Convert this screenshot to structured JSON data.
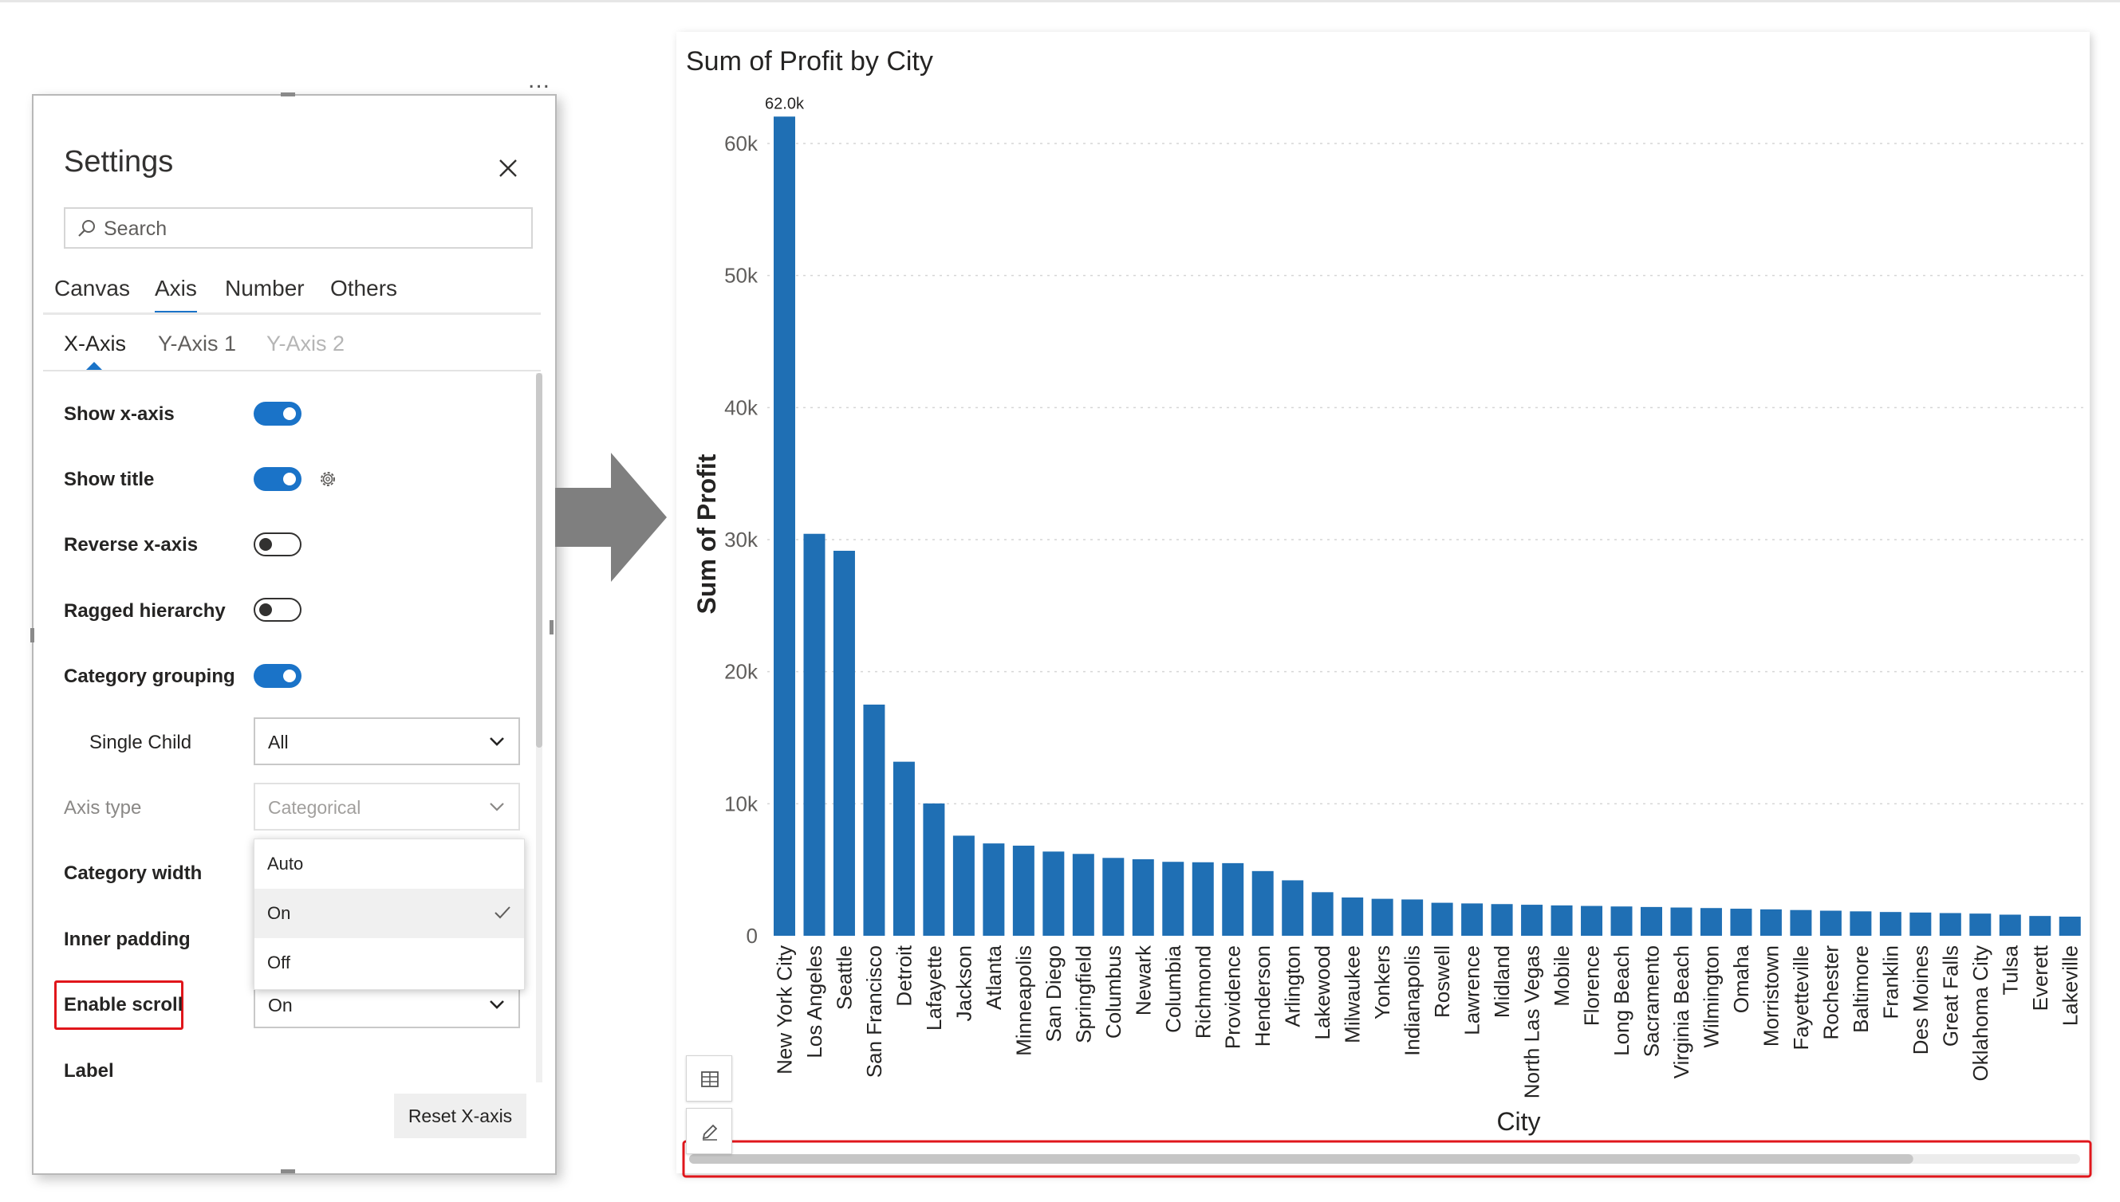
{
  "settings": {
    "title": "Settings",
    "search_placeholder": "Search",
    "tabs": [
      {
        "label": "Canvas",
        "active": false
      },
      {
        "label": "Axis",
        "active": true
      },
      {
        "label": "Number",
        "active": false
      },
      {
        "label": "Others",
        "active": false
      }
    ],
    "subtabs": [
      {
        "label": "X-Axis",
        "state": "active"
      },
      {
        "label": "Y-Axis 1",
        "state": "normal"
      },
      {
        "label": "Y-Axis 2",
        "state": "disabled"
      }
    ],
    "rows": {
      "show_x_axis": {
        "label": "Show x-axis",
        "on": true
      },
      "show_title": {
        "label": "Show title",
        "on": true
      },
      "reverse_x_axis": {
        "label": "Reverse x-axis",
        "on": false
      },
      "ragged_hierarchy": {
        "label": "Ragged hierarchy",
        "on": false
      },
      "category_grouping": {
        "label": "Category grouping",
        "on": true
      },
      "single_child": {
        "label": "Single Child",
        "value": "All"
      },
      "axis_type": {
        "label": "Axis type",
        "value": "Categorical"
      },
      "category_width": {
        "label": "Category width"
      },
      "inner_padding": {
        "label": "Inner padding"
      },
      "enable_scroll": {
        "label": "Enable scroll",
        "value": "On"
      },
      "label": {
        "label": "Label"
      }
    },
    "dropdown_options": [
      {
        "label": "Auto",
        "selected": false
      },
      {
        "label": "On",
        "selected": true
      },
      {
        "label": "Off",
        "selected": false
      }
    ],
    "reset_button": "Reset X-axis",
    "more_options": "..."
  },
  "colors": {
    "accent": "#1a73c8",
    "bar": "#1f6fb4",
    "highlight": "#e0161b",
    "arrow": "#7f7f7f"
  },
  "chart_data": {
    "type": "bar",
    "title": "Sum of Profit by City",
    "xlabel": "City",
    "ylabel": "Sum of Profit",
    "ylim": [
      0,
      62000
    ],
    "yticks": [
      0,
      10000,
      20000,
      30000,
      40000,
      50000,
      60000
    ],
    "ytick_labels": [
      "0",
      "10k",
      "20k",
      "30k",
      "40k",
      "50k",
      "60k"
    ],
    "grid": true,
    "data_labels": [
      {
        "category": "New York City",
        "text": "62.0k"
      }
    ],
    "categories": [
      "New York City",
      "Los Angeles",
      "Seattle",
      "San Francisco",
      "Detroit",
      "Lafayette",
      "Jackson",
      "Atlanta",
      "Minneapolis",
      "San Diego",
      "Springfield",
      "Columbus",
      "Newark",
      "Columbia",
      "Richmond",
      "Providence",
      "Henderson",
      "Arlington",
      "Lakewood",
      "Milwaukee",
      "Yonkers",
      "Indianapolis",
      "Roswell",
      "Lawrence",
      "Midland",
      "North Las Vegas",
      "Mobile",
      "Florence",
      "Long Beach",
      "Sacramento",
      "Virginia Beach",
      "Wilmington",
      "Omaha",
      "Morristown",
      "Fayetteville",
      "Rochester",
      "Baltimore",
      "Franklin",
      "Des Moines",
      "Great Falls",
      "Oklahoma City",
      "Tulsa",
      "Everett",
      "Lakeville"
    ],
    "values": [
      62037,
      30440,
      29156,
      17507,
      13181,
      10018,
      7581,
      6993,
      6825,
      6378,
      6200,
      5897,
      5794,
      5600,
      5567,
      5500,
      4900,
      4200,
      3300,
      2900,
      2800,
      2750,
      2500,
      2450,
      2400,
      2350,
      2300,
      2260,
      2220,
      2180,
      2140,
      2100,
      2050,
      2000,
      1950,
      1900,
      1850,
      1800,
      1760,
      1720,
      1680,
      1600,
      1500,
      1450
    ],
    "scrollbar": {
      "visible": true,
      "position_fraction": 0.0,
      "visible_fraction": 0.88
    }
  }
}
